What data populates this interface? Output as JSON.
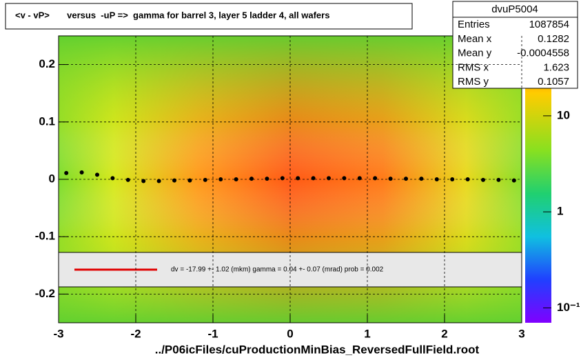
{
  "chart_data": {
    "type": "scatter",
    "title": "<v - vP>       versus  -uP =>  gamma for barrel 3, layer 5 ladder 4, all wafers",
    "x_label": "../P06icFiles/cuProductionMinBias_ReversedFullField.root",
    "xlim": [
      -3,
      3
    ],
    "ylim": [
      -0.25,
      0.25
    ],
    "xticks": [
      -3,
      -2,
      -1,
      0,
      1,
      2,
      3
    ],
    "yticks": [
      -0.2,
      -0.1,
      0,
      0.1,
      0.2
    ],
    "grid": true,
    "series": [
      {
        "color": "#000000",
        "x": [
          -2.9,
          -2.7,
          -2.5,
          -2.3,
          -2.1,
          -1.9,
          -1.7,
          -1.5,
          -1.3,
          -1.1,
          -0.9,
          -0.7,
          -0.5,
          -0.3,
          -0.1,
          0.1,
          0.3,
          0.5,
          0.7,
          0.9,
          1.1,
          1.3,
          1.5,
          1.7,
          1.9,
          2.1,
          2.3,
          2.5,
          2.7,
          2.9
        ],
        "values": [
          0.011,
          0.012,
          0.008,
          0.002,
          -0.001,
          -0.003,
          -0.003,
          -0.002,
          -0.002,
          -0.001,
          0.0,
          0.0,
          0.001,
          0.001,
          0.002,
          0.002,
          0.002,
          0.002,
          0.002,
          0.002,
          0.002,
          0.001,
          0.001,
          0.001,
          0.0,
          0.0,
          0.0,
          -0.001,
          -0.001,
          -0.002
        ]
      }
    ],
    "fit_label": "dv =  -17.99 +-  1.02 (mkm) gamma =    0.04 +-  0.07 (mrad) prob = 0.002",
    "stats_title": "dvuP5004",
    "stats": [
      {
        "label": "Entries",
        "value": 1087854
      },
      {
        "label": "Mean x",
        "value": 0.1282
      },
      {
        "label": "Mean y",
        "value": -0.0004558
      },
      {
        "label": "RMS x",
        "value": 1.623
      },
      {
        "label": "RMS y",
        "value": 0.1057
      }
    ],
    "colorbar": {
      "log": true,
      "zlim": [
        0.07,
        68
      ],
      "ticks": [
        {
          "value": 10,
          "label": "10"
        },
        1,
        {
          "value": 0.1,
          "label": "10⁻¹"
        }
      ]
    }
  }
}
